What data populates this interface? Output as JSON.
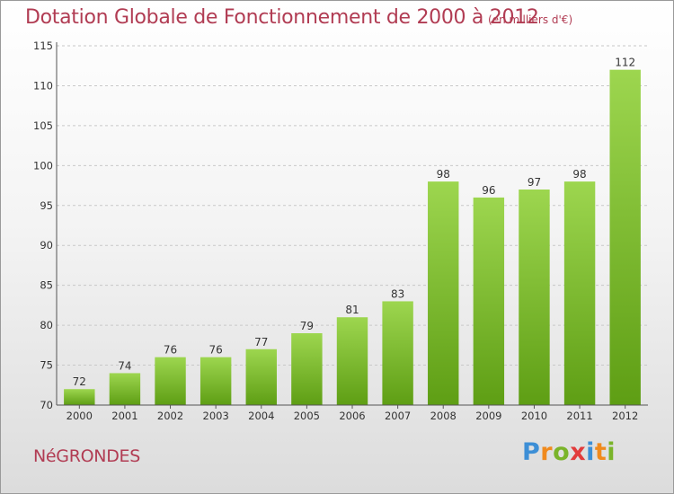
{
  "chart_data": {
    "type": "bar",
    "title": "Dotation Globale de Fonctionnement de 2000 à 2012",
    "subtitle": "(en milliers d'€)",
    "categories": [
      "2000",
      "2001",
      "2002",
      "2003",
      "2004",
      "2005",
      "2006",
      "2007",
      "2008",
      "2009",
      "2010",
      "2011",
      "2012"
    ],
    "values": [
      72,
      74,
      76,
      76,
      77,
      79,
      81,
      83,
      98,
      96,
      97,
      98,
      112
    ],
    "ylim": [
      70,
      115
    ],
    "yticks": [
      70,
      75,
      80,
      85,
      90,
      95,
      100,
      105,
      110,
      115
    ],
    "grid": true,
    "bar_color_top": "#9dd64f",
    "bar_color_bottom": "#5e9e14"
  },
  "footer": {
    "commune": "NéGRONDES",
    "logo_letters": [
      "P",
      "r",
      "o",
      "x",
      "i",
      "t",
      "i"
    ],
    "logo_colors": [
      "#3d8fd6",
      "#f08a1d",
      "#7ab42a",
      "#e23b3b",
      "#3d8fd6",
      "#f08a1d",
      "#7ab42a"
    ]
  }
}
